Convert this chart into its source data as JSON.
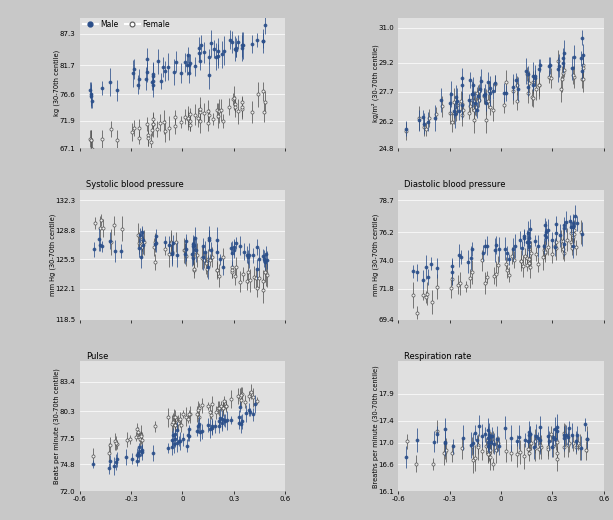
{
  "panels": [
    {
      "title": "",
      "ylabel": "kg (30-70th centile)",
      "ylim": [
        67.1,
        90.0
      ],
      "yticks": [
        67.1,
        71.9,
        76.6,
        81.7,
        87.3
      ],
      "male_trend": [
        -0.55,
        77.0,
        0.48,
        86.5
      ],
      "female_trend": [
        -0.55,
        68.0,
        0.48,
        75.5
      ],
      "male_scatter": 1.2,
      "female_scatter": 1.0,
      "male_yerr": [
        1.2,
        2.5
      ],
      "female_yerr": [
        1.0,
        2.2
      ]
    },
    {
      "title": "",
      "ylabel": "kg/m² (30-70th centile)",
      "ylim": [
        24.8,
        31.5
      ],
      "yticks": [
        24.8,
        26.2,
        27.7,
        29.2,
        31.0
      ],
      "male_trend": [
        -0.55,
        26.2,
        0.48,
        29.5
      ],
      "female_trend": [
        -0.55,
        25.9,
        0.48,
        28.8
      ],
      "male_scatter": 0.4,
      "female_scatter": 0.4,
      "male_yerr": [
        0.3,
        0.7
      ],
      "female_yerr": [
        0.3,
        0.7
      ]
    },
    {
      "title": "Systolic blood pressure",
      "ylabel": "mm Hg (30-70th centile)",
      "ylim": [
        118.5,
        133.5
      ],
      "yticks": [
        118.5,
        122.1,
        125.5,
        128.8,
        132.3
      ],
      "male_trend": [
        -0.55,
        127.5,
        0.48,
        126.0
      ],
      "female_trend": [
        -0.55,
        129.2,
        0.48,
        123.0
      ],
      "male_scatter": 0.8,
      "female_scatter": 0.8,
      "male_yerr": [
        0.6,
        1.5
      ],
      "female_yerr": [
        0.6,
        1.5
      ]
    },
    {
      "title": "Diastolic blood pressure",
      "ylabel": "mm Hg (30-70th centile)",
      "ylim": [
        69.4,
        79.5
      ],
      "yticks": [
        69.4,
        71.8,
        74.0,
        76.2,
        78.7
      ],
      "male_trend": [
        -0.55,
        72.8,
        0.48,
        76.8
      ],
      "female_trend": [
        -0.55,
        70.8,
        0.48,
        75.8
      ],
      "male_scatter": 0.5,
      "female_scatter": 0.5,
      "male_yerr": [
        0.4,
        1.0
      ],
      "female_yerr": [
        0.4,
        1.0
      ]
    },
    {
      "title": "Pulse",
      "ylabel": "Beats per minute (30-70th centile)",
      "ylim": [
        72.0,
        85.5
      ],
      "yticks": [
        72.0,
        74.8,
        77.5,
        80.3,
        83.4
      ],
      "male_trend": [
        -0.55,
        74.2,
        0.48,
        80.8
      ],
      "female_trend": [
        -0.55,
        75.8,
        0.48,
        82.5
      ],
      "male_scatter": 0.5,
      "female_scatter": 0.5,
      "male_yerr": [
        0.4,
        1.0
      ],
      "female_yerr": [
        0.4,
        1.0
      ]
    },
    {
      "title": "Respiration rate",
      "ylabel": "Breaths per minute (30-70th centile)",
      "ylim": [
        16.1,
        18.5
      ],
      "yticks": [
        16.1,
        16.6,
        17.0,
        17.4,
        17.9
      ],
      "male_trend": [
        -0.55,
        17.0,
        0.48,
        17.15
      ],
      "female_trend": [
        -0.55,
        16.85,
        0.48,
        16.95
      ],
      "male_scatter": 0.12,
      "female_scatter": 0.12,
      "male_yerr": [
        0.1,
        0.25
      ],
      "female_yerr": [
        0.1,
        0.25
      ]
    }
  ],
  "xlim": [
    -0.6,
    0.6
  ],
  "xticks": [
    -0.6,
    -0.3,
    0.0,
    0.3,
    0.6
  ],
  "xtick_labels": [
    "-0.6",
    "-0.3",
    "0",
    "0.3",
    "0.6"
  ],
  "male_color": "#2b4f8a",
  "female_color": "#555555",
  "bg_color": "#e0e0e0",
  "fig_bg": "#c8c8c8",
  "seed": 42
}
